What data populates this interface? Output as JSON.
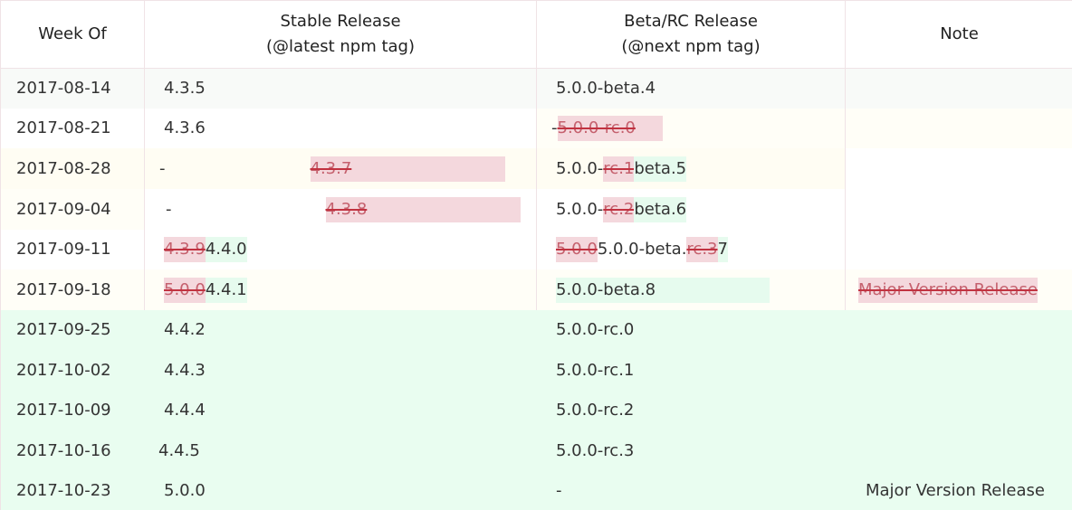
{
  "header": {
    "week_of": "Week Of",
    "stable_line1": "Stable Release",
    "stable_line2": "(@latest npm tag)",
    "beta_line1": "Beta/RC Release",
    "beta_line2": "(@next npm tag)",
    "note": "Note"
  },
  "rows": [
    {
      "week": "2017-08-14",
      "stable": "4.3.5",
      "beta": "5.0.0-beta.4",
      "note": ""
    },
    {
      "week": "2017-08-21",
      "stable": "4.3.6",
      "beta_dash": "-",
      "beta_del": "5.0.0-rc.0",
      "note": ""
    },
    {
      "week": "2017-08-28",
      "stable_dash": "-",
      "stable_del": "4.3.7",
      "beta_pre": "5.0.0-",
      "beta_del": "rc.1",
      "beta_ins": "beta.5",
      "note": ""
    },
    {
      "week": "2017-09-04",
      "stable_dash": "-",
      "stable_del": "4.3.8",
      "beta_pre": "5.0.0-",
      "beta_del": "rc.2",
      "beta_ins": "beta.6",
      "note": ""
    },
    {
      "week": "2017-09-11",
      "stable_del": "4.3.9",
      "stable_ins": "4.4.0",
      "beta_del": "5.0.0",
      "beta_mid": "5.0.0-beta.",
      "beta_del2": "rc.3",
      "beta_ins": "7",
      "note": ""
    },
    {
      "week": "2017-09-18",
      "stable_del": "5.0.0",
      "stable_ins": "4.4.1",
      "beta": "5.0.0-beta.8",
      "note_del": "Major Version Release"
    },
    {
      "week": "2017-09-25",
      "stable": "4.4.2",
      "beta": "5.0.0-rc.0",
      "note": ""
    },
    {
      "week": "2017-10-02",
      "stable": "4.4.3",
      "beta": "5.0.0-rc.1",
      "note": ""
    },
    {
      "week": "2017-10-09",
      "stable": "4.4.4",
      "beta": "5.0.0-rc.2",
      "note": ""
    },
    {
      "week": "2017-10-16",
      "stable": "4.4.5",
      "beta": "5.0.0-rc.3",
      "note": ""
    },
    {
      "week": "2017-10-23",
      "stable": "5.0.0",
      "beta": "-",
      "note": "Major Version Release"
    }
  ]
}
